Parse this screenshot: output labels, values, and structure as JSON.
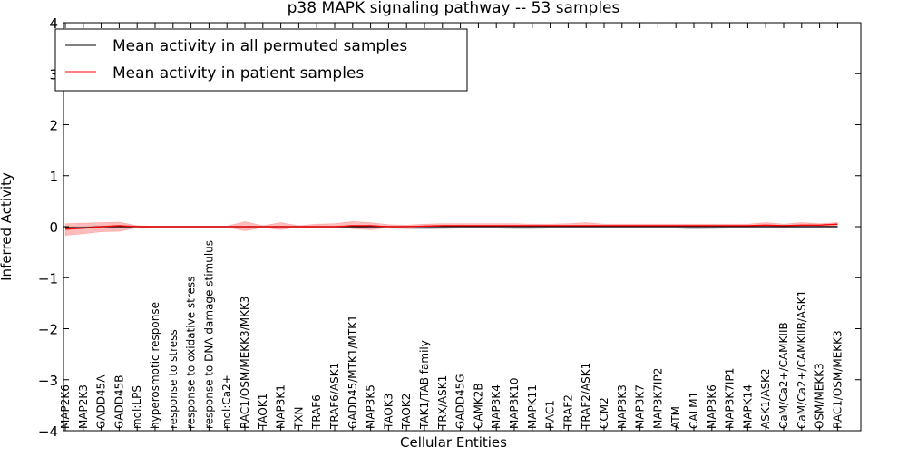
{
  "chart_data": {
    "type": "line",
    "title": "p38 MAPK signaling pathway -- 53 samples",
    "xlabel": "Cellular Entities",
    "ylabel": "Inferred Activity",
    "ylim": [
      -4,
      4
    ],
    "yticks": [
      -4,
      -3,
      -2,
      -1,
      0,
      1,
      2,
      3,
      4
    ],
    "ytick_labels": [
      "−4",
      "−3",
      "−2",
      "−1",
      "0",
      "1",
      "2",
      "3",
      "4"
    ],
    "legend_position": "upper-left",
    "categories": [
      "MAP2K6",
      "MAP2K3",
      "GADD45A",
      "GADD45B",
      "mol:LPS",
      "hyperosmotic response",
      "response to stress",
      "response to oxidative stress",
      "response to DNA damage stimulus",
      "mol:Ca2+",
      "RAC1/OSM/MEKK3/MKK3",
      "TAOK1",
      "MAP3K1",
      "TXN",
      "TRAF6",
      "TRAF6/ASK1",
      "GADD45/MTK1/MTK1",
      "MAP3K5",
      "TAOK3",
      "TAOK2",
      "TAK1/TAB family",
      "TRX/ASK1",
      "GADD45G",
      "CAMK2B",
      "MAP3K4",
      "MAP3K10",
      "MAPK11",
      "RAC1",
      "TRAF2",
      "TRAF2/ASK1",
      "CCM2",
      "MAP3K3",
      "MAP3K7",
      "MAP3K7IP2",
      "ATM",
      "CALM1",
      "MAP3K6",
      "MAP3K7IP1",
      "MAPK14",
      "ASK1/ASK2",
      "CaM/Ca2+/CAMKIIB",
      "CaM/Ca2+/CAMKIIB/ASK1",
      "OSM/MEKK3",
      "RAC1/OSM/MEKK3"
    ],
    "series": [
      {
        "name": "Mean activity in all permuted samples",
        "color": "#000000",
        "values": [
          -0.02,
          -0.02,
          0.0,
          0.0,
          0.0,
          0.0,
          0.0,
          0.0,
          0.0,
          0.0,
          0.0,
          0.0,
          0.0,
          0.0,
          0.0,
          0.0,
          0.0,
          0.0,
          0.0,
          0.0,
          0.0,
          0.0,
          0.0,
          0.0,
          0.0,
          0.0,
          0.0,
          0.0,
          0.0,
          0.0,
          0.0,
          0.0,
          0.0,
          0.0,
          0.0,
          0.0,
          0.0,
          0.0,
          0.0,
          0.0,
          0.0,
          0.0,
          0.0,
          0.0
        ],
        "band_lower": [
          -0.03,
          -0.03,
          -0.01,
          -0.01,
          -0.01,
          -0.01,
          -0.01,
          -0.01,
          -0.01,
          -0.01,
          -0.01,
          -0.01,
          -0.01,
          -0.01,
          -0.01,
          -0.01,
          -0.01,
          -0.02,
          -0.03,
          -0.04,
          -0.05,
          -0.04,
          -0.03,
          -0.03,
          -0.03,
          -0.04,
          -0.04,
          -0.03,
          -0.03,
          -0.03,
          -0.03,
          -0.03,
          -0.03,
          -0.03,
          -0.03,
          -0.05,
          -0.04,
          -0.03,
          -0.03,
          -0.03,
          -0.03,
          -0.03,
          -0.03,
          -0.03
        ],
        "band_upper": [
          0.0,
          0.0,
          0.01,
          0.01,
          0.01,
          0.01,
          0.01,
          0.01,
          0.01,
          0.01,
          0.01,
          0.01,
          0.01,
          0.01,
          0.01,
          0.01,
          0.01,
          0.01,
          0.01,
          0.01,
          0.01,
          0.01,
          0.01,
          0.01,
          0.01,
          0.01,
          0.01,
          0.01,
          0.01,
          0.01,
          0.01,
          0.01,
          0.01,
          0.01,
          0.01,
          0.01,
          0.01,
          0.01,
          0.01,
          0.01,
          0.01,
          0.01,
          0.01,
          0.01
        ]
      },
      {
        "name": "Mean activity in patient samples",
        "color": "#ff0000",
        "values": [
          -0.05,
          -0.03,
          0.0,
          0.02,
          0.0,
          0.0,
          0.0,
          0.0,
          0.0,
          0.0,
          0.0,
          0.0,
          0.0,
          0.0,
          0.0,
          0.0,
          0.02,
          0.02,
          0.0,
          0.0,
          0.01,
          0.02,
          0.02,
          0.02,
          0.02,
          0.02,
          0.02,
          0.02,
          0.02,
          0.02,
          0.02,
          0.02,
          0.02,
          0.02,
          0.02,
          0.02,
          0.02,
          0.02,
          0.02,
          0.03,
          0.02,
          0.03,
          0.03,
          0.05
        ],
        "band_lower": [
          -0.17,
          -0.14,
          -0.1,
          -0.09,
          -0.02,
          -0.01,
          -0.01,
          -0.01,
          -0.01,
          -0.01,
          -0.08,
          -0.02,
          -0.06,
          -0.01,
          -0.02,
          -0.01,
          -0.04,
          -0.06,
          -0.02,
          -0.01,
          0.0,
          0.0,
          0.0,
          0.0,
          0.0,
          0.0,
          0.0,
          0.0,
          0.0,
          0.0,
          0.0,
          0.0,
          0.0,
          0.0,
          0.0,
          0.0,
          0.0,
          0.0,
          0.0,
          0.0,
          0.0,
          0.0,
          0.0,
          0.02
        ],
        "band_upper": [
          0.06,
          0.07,
          0.08,
          0.09,
          0.02,
          0.01,
          0.01,
          0.01,
          0.01,
          0.01,
          0.1,
          0.02,
          0.08,
          0.02,
          0.05,
          0.06,
          0.1,
          0.08,
          0.04,
          0.03,
          0.05,
          0.06,
          0.06,
          0.06,
          0.06,
          0.06,
          0.05,
          0.05,
          0.06,
          0.08,
          0.05,
          0.05,
          0.05,
          0.05,
          0.05,
          0.05,
          0.05,
          0.05,
          0.05,
          0.08,
          0.05,
          0.08,
          0.06,
          0.08
        ]
      }
    ]
  }
}
